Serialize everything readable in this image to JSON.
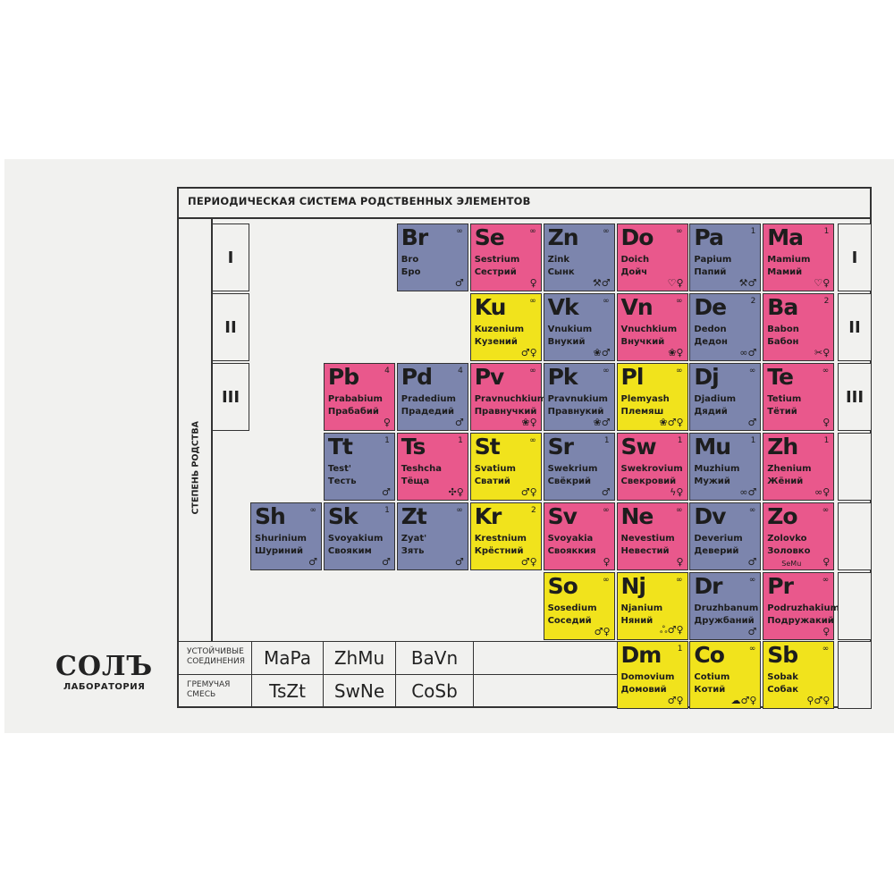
{
  "title": "ПЕРИОДИЧЕСКАЯ СИСТЕМА РОДСТВЕННЫХ ЭЛЕМЕНТОВ",
  "vertical_label": "СТЕПЕНЬ РОДСТВА",
  "degrees": [
    "I",
    "II",
    "III"
  ],
  "colors": {
    "blue": "#7c85ad",
    "pink": "#e9588c",
    "yellow": "#f1e31c"
  },
  "rows": [
    [
      {
        "s": "Br",
        "lat": "Bro",
        "rus": "Бро",
        "n": "∞",
        "c": "blue",
        "i": "♂"
      },
      {
        "s": "Se",
        "lat": "Sestrium",
        "rus": "Сестрий",
        "n": "∞",
        "c": "pink",
        "i": "♀"
      },
      {
        "s": "Zn",
        "lat": "Zink",
        "rus": "Сынк",
        "n": "∞",
        "c": "blue",
        "i": "⚒♂"
      },
      {
        "s": "Do",
        "lat": "Doich",
        "rus": "Дойч",
        "n": "∞",
        "c": "pink",
        "i": "♡♀"
      },
      {
        "s": "Pa",
        "lat": "Papium",
        "rus": "Папий",
        "n": "1",
        "c": "blue",
        "i": "⚒♂"
      },
      {
        "s": "Ma",
        "lat": "Mamium",
        "rus": "Мамий",
        "n": "1",
        "c": "pink",
        "i": "♡♀"
      }
    ],
    [
      {
        "s": "Ku",
        "lat": "Kuzenium",
        "rus": "Кузений",
        "n": "∞",
        "c": "yellow",
        "i": "♂♀"
      },
      {
        "s": "Vk",
        "lat": "Vnukium",
        "rus": "Внукий",
        "n": "∞",
        "c": "blue",
        "i": "❀♂"
      },
      {
        "s": "Vn",
        "lat": "Vnuchkium",
        "rus": "Внучкий",
        "n": "∞",
        "c": "pink",
        "i": "❀♀"
      },
      {
        "s": "De",
        "lat": "Dedon",
        "rus": "Дедон",
        "n": "2",
        "c": "blue",
        "i": "∞♂"
      },
      {
        "s": "Ba",
        "lat": "Babon",
        "rus": "Бабон",
        "n": "2",
        "c": "pink",
        "i": "✂♀"
      }
    ],
    [
      {
        "s": "Pb",
        "lat": "Prababium",
        "rus": "Прабабий",
        "n": "4",
        "c": "pink",
        "i": "♀"
      },
      {
        "s": "Pd",
        "lat": "Pradedium",
        "rus": "Прадедий",
        "n": "4",
        "c": "blue",
        "i": "♂"
      },
      {
        "s": "Pv",
        "lat": "Pravnuchkium",
        "rus": "Правнучкий",
        "n": "∞",
        "c": "pink",
        "i": "❀♀"
      },
      {
        "s": "Pk",
        "lat": "Pravnukium",
        "rus": "Правнукий",
        "n": "∞",
        "c": "blue",
        "i": "❀♂"
      },
      {
        "s": "Pl",
        "lat": "Plemyash",
        "rus": "Племяш",
        "n": "∞",
        "c": "yellow",
        "i": "❀♂♀"
      },
      {
        "s": "Dj",
        "lat": "Djadium",
        "rus": "Дядий",
        "n": "∞",
        "c": "blue",
        "i": "♂"
      },
      {
        "s": "Te",
        "lat": "Tetium",
        "rus": "Тётий",
        "n": "∞",
        "c": "pink",
        "i": "♀"
      }
    ],
    [
      {
        "s": "Tt",
        "lat": "Test'",
        "rus": "Тесть",
        "n": "1",
        "c": "blue",
        "i": "♂"
      },
      {
        "s": "Ts",
        "lat": "Teshcha",
        "rus": "Тёща",
        "n": "1",
        "c": "pink",
        "i": "✣♀"
      },
      {
        "s": "St",
        "lat": "Svatium",
        "rus": "Сватий",
        "n": "∞",
        "c": "yellow",
        "i": "♂♀"
      },
      {
        "s": "Sr",
        "lat": "Swekrium",
        "rus": "Свёкрий",
        "n": "1",
        "c": "blue",
        "i": "♂"
      },
      {
        "s": "Sw",
        "lat": "Swekrovium",
        "rus": "Свекровий",
        "n": "1",
        "c": "pink",
        "i": "ϟ♀"
      },
      {
        "s": "Mu",
        "lat": "Muzhium",
        "rus": "Мужий",
        "n": "1",
        "c": "blue",
        "i": "∞♂"
      },
      {
        "s": "Zh",
        "lat": "Zhenium",
        "rus": "Жёний",
        "n": "1",
        "c": "pink",
        "i": "∞♀"
      }
    ],
    [
      {
        "s": "Sh",
        "lat": "Shurinium",
        "rus": "Шуриний",
        "n": "∞",
        "c": "blue",
        "i": "♂"
      },
      {
        "s": "Sk",
        "lat": "Svoyakium",
        "rus": "Свояким",
        "n": "1",
        "c": "blue",
        "i": "♂"
      },
      {
        "s": "Zt",
        "lat": "Zyat'",
        "rus": "Зять",
        "n": "∞",
        "c": "blue",
        "i": "♂"
      },
      {
        "s": "Kr",
        "lat": "Krestnium",
        "rus": "Крёстний",
        "n": "2",
        "c": "yellow",
        "i": "♂♀"
      },
      {
        "s": "Sv",
        "lat": "Svoyakia",
        "rus": "Свояккия",
        "n": "∞",
        "c": "pink",
        "i": "♀"
      },
      {
        "s": "Ne",
        "lat": "Nevestium",
        "rus": "Невестий",
        "n": "∞",
        "c": "pink",
        "i": "♀"
      },
      {
        "s": "Dv",
        "lat": "Deverium",
        "rus": "Деверий",
        "n": "∞",
        "c": "blue",
        "i": "♂"
      },
      {
        "s": "Zo",
        "lat": "Zolovko",
        "rus": "Золовко",
        "n": "∞",
        "c": "pink",
        "i": "♀",
        "extra": "SeMu"
      }
    ],
    [
      {
        "s": "So",
        "lat": "Sosedium",
        "rus": "Соседий",
        "n": "∞",
        "c": "yellow",
        "i": "♂♀"
      },
      {
        "s": "Nj",
        "lat": "Njanium",
        "rus": "Няний",
        "n": "∞",
        "c": "yellow",
        "i": "ஃ♂♀"
      },
      {
        "s": "Dr",
        "lat": "Druzhbanum",
        "rus": "Дружбаний",
        "n": "∞",
        "c": "blue",
        "i": "♂"
      },
      {
        "s": "Pr",
        "lat": "Podruzhakium",
        "rus": "Подружакий",
        "n": "∞",
        "c": "pink",
        "i": "♀"
      }
    ],
    [
      {
        "s": "Dm",
        "lat": "Domovium",
        "rus": "Домовий",
        "n": "1",
        "c": "yellow",
        "i": "♂♀"
      },
      {
        "s": "Co",
        "lat": "Cotium",
        "rus": "Котий",
        "n": "∞",
        "c": "yellow",
        "i": "☁♂♀"
      },
      {
        "s": "Sb",
        "lat": "Sobak",
        "rus": "Собак",
        "n": "∞",
        "c": "yellow",
        "i": "⚲♂♀"
      }
    ]
  ],
  "bottom": {
    "stable_label": "УСТОЙЧИВЫЕ СОЕДИНЕНИЯ",
    "stable": [
      "MaPa",
      "ZhMu",
      "BaVn"
    ],
    "explosive_label": "ГРЕМУЧАЯ СМЕСЬ",
    "explosive": [
      "TsZt",
      "SwNe",
      "CoSb"
    ]
  },
  "logo": {
    "name": "СОЛЪ",
    "sub": "ЛАБОРАТОРИЯ"
  }
}
